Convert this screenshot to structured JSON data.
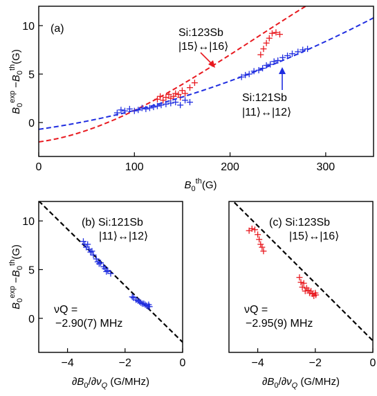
{
  "chart_data": [
    {
      "panel": "a",
      "type": "scatter",
      "panel_label": "(a)",
      "xlabel": "B0th (G)",
      "ylabel": "B0exp − B0th (G)",
      "xlim": [
        0,
        350
      ],
      "ylim": [
        -3.5,
        12
      ],
      "x_ticks": [
        0,
        100,
        200,
        300
      ],
      "y_ticks": [
        0,
        5,
        10
      ],
      "series": [
        {
          "name": "Si:123Sb |15⟩↔|16⟩",
          "color": "#e8191f",
          "points": [
            [
              124,
              2.4
            ],
            [
              127,
              2.7
            ],
            [
              130,
              2.3
            ],
            [
              133,
              2.6
            ],
            [
              136,
              2.9
            ],
            [
              138,
              2.5
            ],
            [
              141,
              2.7
            ],
            [
              143,
              3.0
            ],
            [
              146,
              2.9
            ],
            [
              148,
              2.6
            ],
            [
              150,
              3.3
            ],
            [
              153,
              3.0
            ],
            [
              158,
              3.6
            ],
            [
              163,
              4.1
            ],
            [
              232,
              7.0
            ],
            [
              235,
              7.6
            ],
            [
              238,
              8.2
            ],
            [
              241,
              8.7
            ],
            [
              244,
              9.2
            ],
            [
              248,
              9.3
            ],
            [
              252,
              9.1
            ]
          ],
          "fit": {
            "style": "dashed",
            "curve": "quadratic",
            "x": [
              0,
              100,
              200,
              279
            ],
            "y": [
              -2.0,
              1.25,
              7.0,
              12.0
            ]
          }
        },
        {
          "name": "Si:121Sb |11⟩↔|12⟩",
          "color": "#1f2de0",
          "points": [
            [
              82,
              1.0
            ],
            [
              86,
              1.3
            ],
            [
              90,
              1.2
            ],
            [
              95,
              1.4
            ],
            [
              100,
              1.2
            ],
            [
              104,
              1.3
            ],
            [
              108,
              1.5
            ],
            [
              112,
              1.4
            ],
            [
              116,
              1.5
            ],
            [
              120,
              1.6
            ],
            [
              124,
              1.7
            ],
            [
              128,
              1.8
            ],
            [
              133,
              1.9
            ],
            [
              138,
              2.0
            ],
            [
              143,
              2.1
            ],
            [
              148,
              1.8
            ],
            [
              153,
              2.3
            ],
            [
              158,
              2.1
            ],
            [
              212,
              4.7
            ],
            [
              216,
              4.9
            ],
            [
              220,
              5.0
            ],
            [
              225,
              5.3
            ],
            [
              230,
              5.4
            ],
            [
              234,
              5.6
            ],
            [
              238,
              5.9
            ],
            [
              242,
              6.0
            ],
            [
              246,
              6.3
            ],
            [
              250,
              6.4
            ],
            [
              255,
              6.7
            ],
            [
              260,
              6.9
            ],
            [
              265,
              7.1
            ],
            [
              271,
              7.3
            ],
            [
              276,
              7.5
            ],
            [
              281,
              7.6
            ]
          ],
          "fit": {
            "style": "dashed",
            "curve": "quadratic",
            "x": [
              0,
              100,
              250,
              350
            ],
            "y": [
              -0.7,
              1.25,
              6.2,
              10.8
            ]
          }
        }
      ],
      "annotations": [
        {
          "lines": [
            "Si:123Sb",
            "|15⟩↔|16⟩"
          ],
          "color": "#000000",
          "arrow_color": "#e8191f"
        },
        {
          "lines": [
            "Si:121Sb",
            "|11⟩↔|12⟩"
          ],
          "color": "#000000",
          "arrow_color": "#1f2de0"
        }
      ]
    },
    {
      "panel": "b",
      "type": "scatter",
      "panel_label": "(b) Si:121Sb",
      "transition": "|11⟩↔|12⟩",
      "xlabel": "∂B0/∂νQ (G/MHz)",
      "ylabel": "B0exp − B0th (G)",
      "xlim": [
        -5,
        0
      ],
      "ylim": [
        -3.5,
        12
      ],
      "x_ticks": [
        -4,
        -2,
        0
      ],
      "y_ticks": [
        0,
        5,
        10
      ],
      "nuQ_line1": "νQ =",
      "nuQ_line2": "−2.90(7) MHz",
      "color": "#1f2de0",
      "points": [
        [
          -3.45,
          7.9
        ],
        [
          -3.4,
          7.6
        ],
        [
          -3.35,
          7.3
        ],
        [
          -3.3,
          7.6
        ],
        [
          -3.25,
          7.1
        ],
        [
          -3.2,
          6.8
        ],
        [
          -3.15,
          6.9
        ],
        [
          -3.1,
          6.5
        ],
        [
          -3.0,
          6.1
        ],
        [
          -2.95,
          5.8
        ],
        [
          -2.9,
          5.6
        ],
        [
          -2.85,
          5.7
        ],
        [
          -2.75,
          5.3
        ],
        [
          -2.7,
          5.1
        ],
        [
          -2.65,
          4.8
        ],
        [
          -2.6,
          4.9
        ],
        [
          -2.5,
          4.6
        ],
        [
          -1.75,
          2.2
        ],
        [
          -1.7,
          2.1
        ],
        [
          -1.62,
          1.9
        ],
        [
          -1.55,
          1.8
        ],
        [
          -1.5,
          1.7
        ],
        [
          -1.45,
          1.6
        ],
        [
          -1.4,
          1.5
        ],
        [
          -1.35,
          1.5
        ],
        [
          -1.3,
          1.4
        ],
        [
          -1.25,
          1.3
        ],
        [
          -1.2,
          1.2
        ],
        [
          -1.18,
          1.4
        ],
        [
          -1.15,
          1.2
        ]
      ],
      "fit": {
        "style": "dashed",
        "x": [
          -5,
          0
        ],
        "y": [
          12.05,
          -2.45
        ]
      }
    },
    {
      "panel": "c",
      "type": "scatter",
      "panel_label": "(c) Si:123Sb",
      "transition": "|15⟩↔|16⟩",
      "xlabel": "∂B0/∂νQ (G/MHz)",
      "ylabel": "",
      "xlim": [
        -5,
        0
      ],
      "ylim": [
        -3.5,
        12
      ],
      "x_ticks": [
        -4,
        -2,
        0
      ],
      "y_ticks": [],
      "nuQ_line1": "νQ =",
      "nuQ_line2": "−2.95(9) MHz",
      "color": "#e8191f",
      "points": [
        [
          -4.3,
          9.0
        ],
        [
          -4.2,
          9.2
        ],
        [
          -4.1,
          9.1
        ],
        [
          -4.0,
          8.6
        ],
        [
          -3.95,
          8.1
        ],
        [
          -3.9,
          7.6
        ],
        [
          -3.85,
          7.3
        ],
        [
          -3.8,
          6.9
        ],
        [
          -2.55,
          4.2
        ],
        [
          -2.5,
          3.7
        ],
        [
          -2.45,
          3.2
        ],
        [
          -2.4,
          3.6
        ],
        [
          -2.35,
          2.8
        ],
        [
          -2.3,
          3.1
        ],
        [
          -2.25,
          2.9
        ],
        [
          -2.2,
          2.6
        ],
        [
          -2.15,
          2.8
        ],
        [
          -2.1,
          2.5
        ],
        [
          -2.05,
          2.3
        ],
        [
          -2.0,
          2.6
        ],
        [
          -1.98,
          2.4
        ]
      ],
      "fit": {
        "style": "dashed",
        "x": [
          -5,
          0
        ],
        "y": [
          12.45,
          -2.3
        ]
      }
    }
  ]
}
